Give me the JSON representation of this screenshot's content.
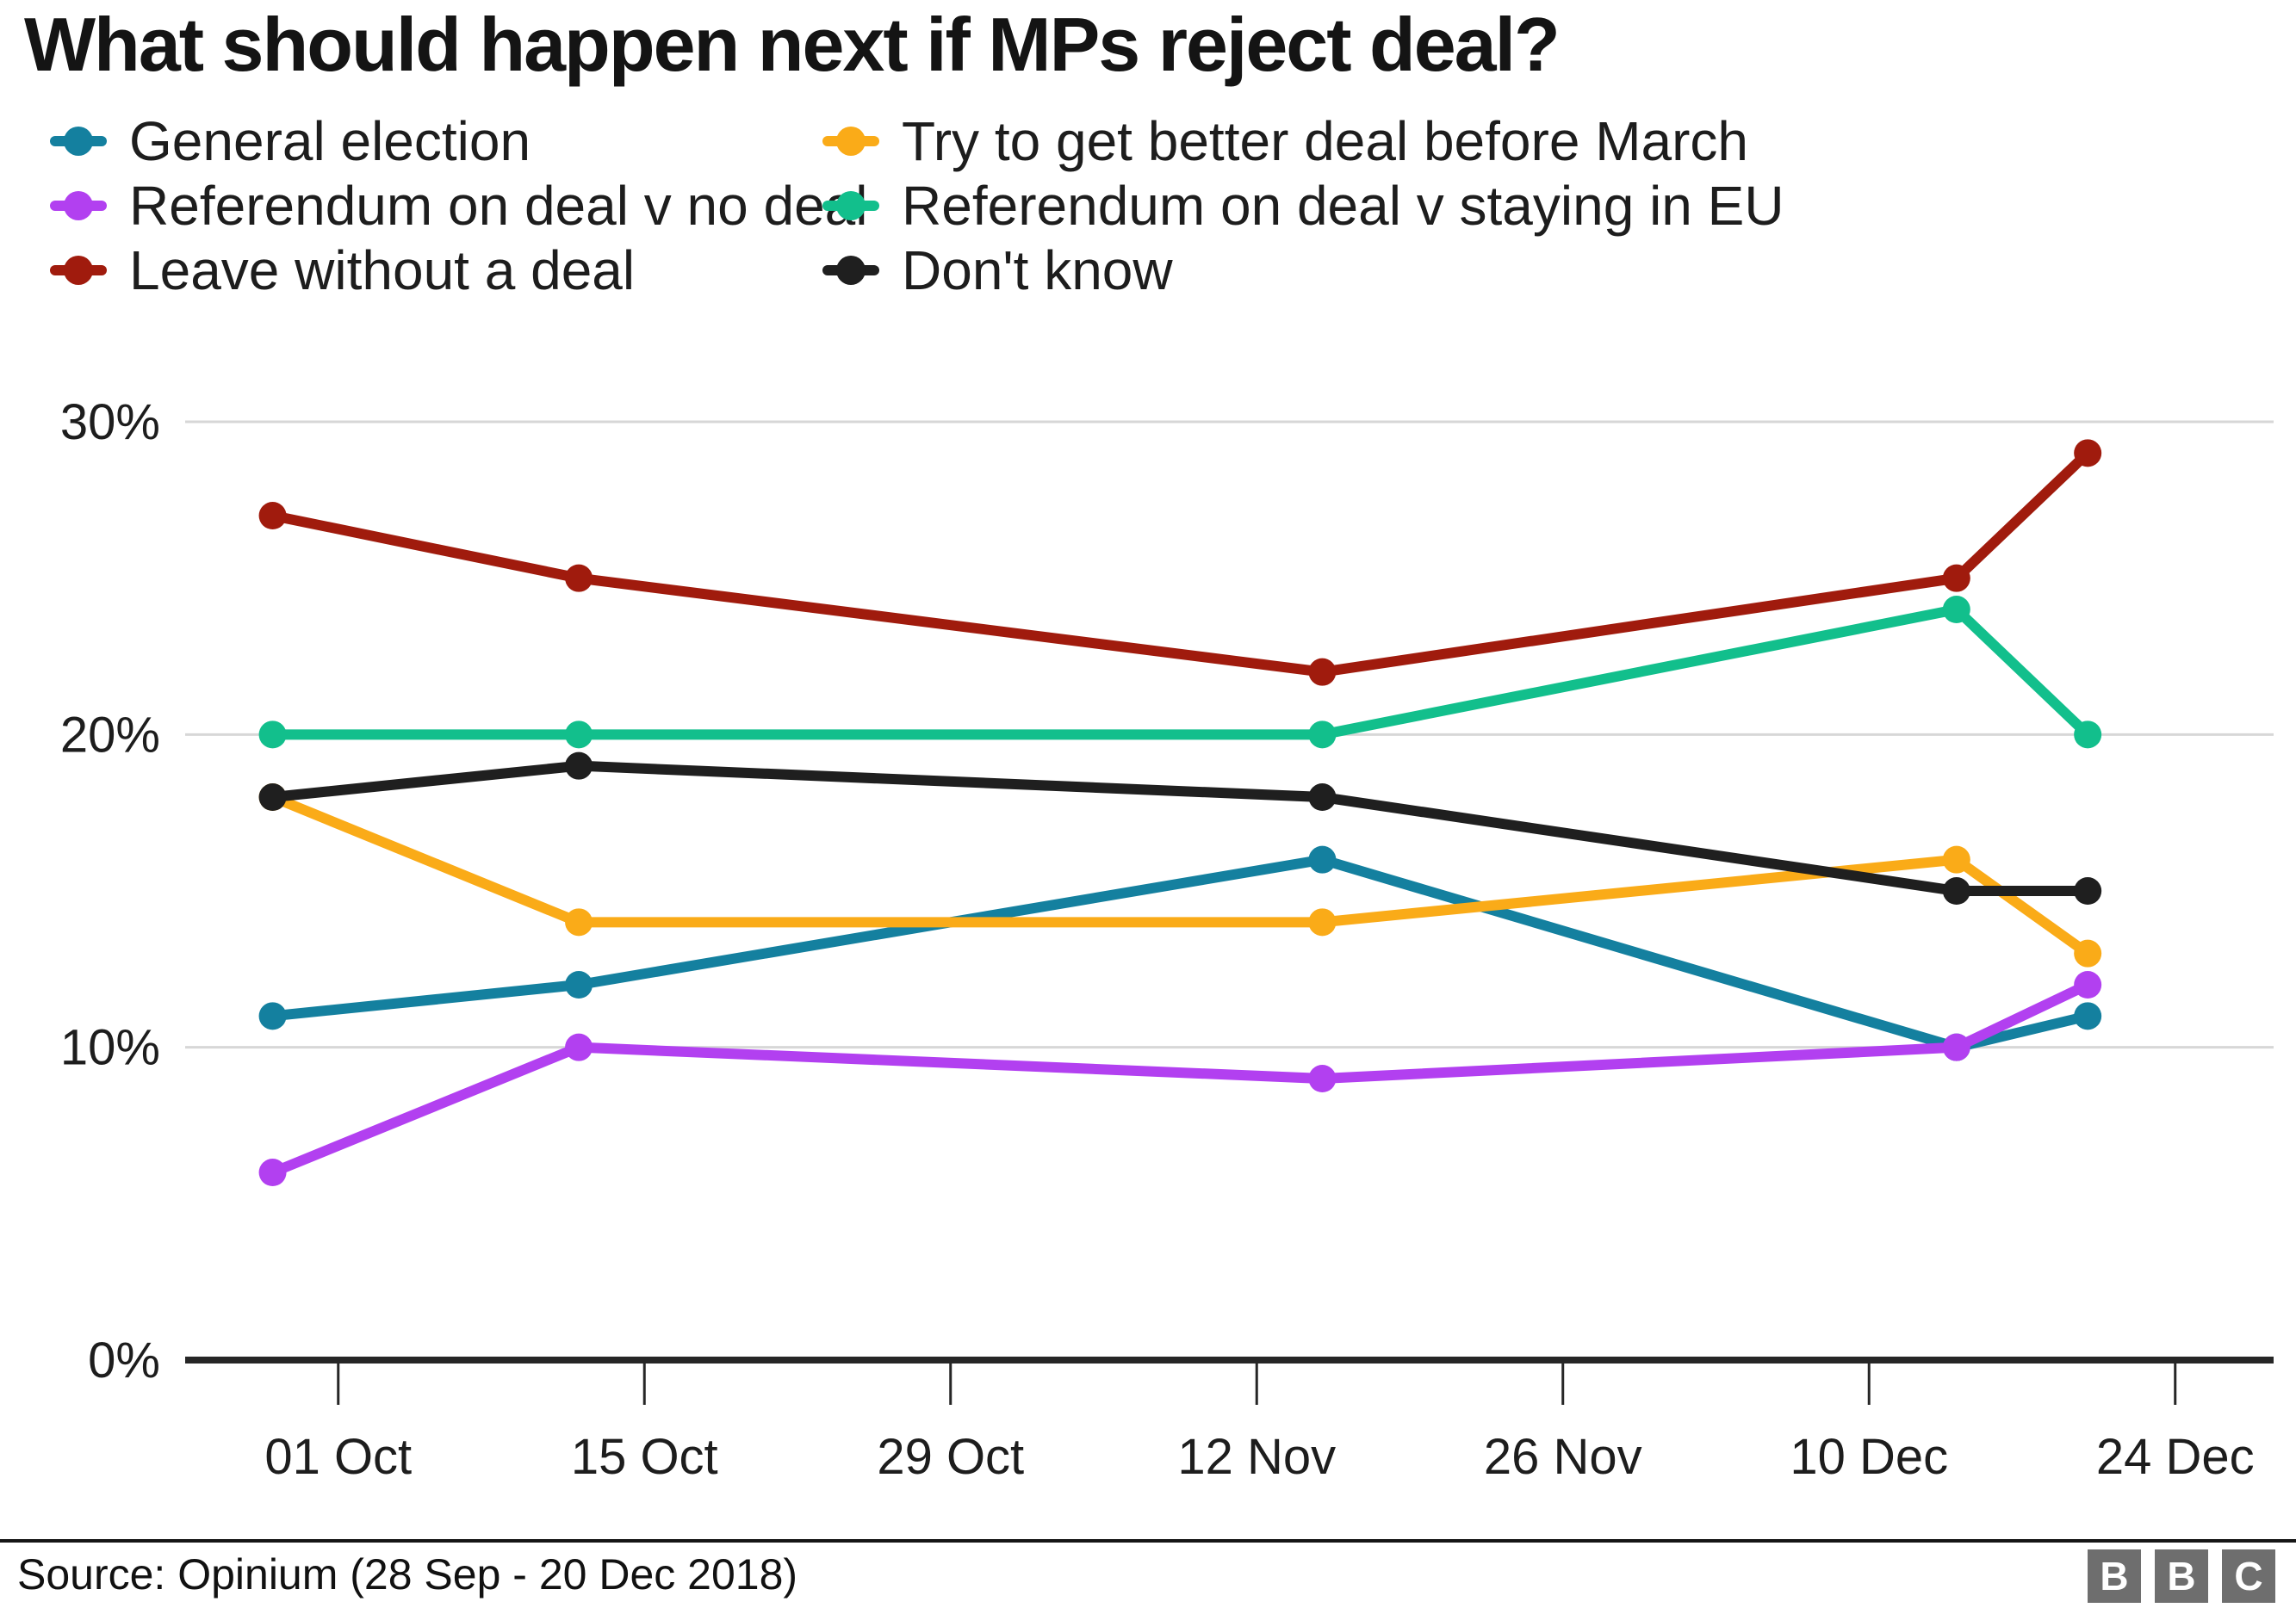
{
  "chart_data": {
    "type": "line",
    "title": "What should happen next if MPs reject deal?",
    "xlabel": "",
    "ylabel": "",
    "ylim": [
      0,
      30
    ],
    "grid": "horizontal",
    "legend_position": "top",
    "y_ticks": [
      {
        "value": 0,
        "label": "0%"
      },
      {
        "value": 10,
        "label": "10%"
      },
      {
        "value": 20,
        "label": "20%"
      },
      {
        "value": 30,
        "label": "30%"
      }
    ],
    "x_ticks": [
      {
        "day": 7,
        "label": "01 Oct"
      },
      {
        "day": 21,
        "label": "15 Oct"
      },
      {
        "day": 35,
        "label": "29 Oct"
      },
      {
        "day": 49,
        "label": "12 Nov"
      },
      {
        "day": 63,
        "label": "26 Nov"
      },
      {
        "day": 77,
        "label": "10 Dec"
      },
      {
        "day": 91,
        "label": "24 Dec"
      }
    ],
    "x_domain_days": [
      0,
      95.5
    ],
    "poll_dates": [
      "28 Sep",
      "12 Oct",
      "15 Nov",
      "14 Dec",
      "20 Dec"
    ],
    "poll_days": [
      4,
      18,
      52,
      81,
      87
    ],
    "series": [
      {
        "name": "General election",
        "slug": "general-election",
        "color": "#14809F",
        "values": [
          11,
          12,
          16,
          10,
          11
        ]
      },
      {
        "name": "Referendum on deal v no deal",
        "slug": "referendum-deal-v-no-deal",
        "color": "#B240F0",
        "values": [
          6,
          10,
          9,
          10,
          12
        ]
      },
      {
        "name": "Leave without a deal",
        "slug": "leave-without-a-deal",
        "color": "#A01B0D",
        "values": [
          27,
          25,
          22,
          25,
          29
        ]
      },
      {
        "name": "Try to get better deal before March",
        "slug": "try-better-deal",
        "color": "#FAAB18",
        "values": [
          18,
          14,
          14,
          16,
          13
        ]
      },
      {
        "name": "Referendum on deal v staying in EU",
        "slug": "referendum-deal-v-staying-eu",
        "color": "#12BF8C",
        "values": [
          20,
          20,
          20,
          24,
          20
        ]
      },
      {
        "name": "Don't know",
        "slug": "dont-know",
        "color": "#1F1F1F",
        "values": [
          18,
          19,
          18,
          15,
          15
        ]
      }
    ]
  },
  "legend": {
    "items": [
      {
        "label": "General election",
        "series": "general-election"
      },
      {
        "label": "Try to get better deal before March",
        "series": "try-better-deal"
      },
      {
        "label": "Referendum on deal v no deal",
        "series": "referendum-deal-v-no-deal"
      },
      {
        "label": "Referendum on deal v staying in EU",
        "series": "referendum-deal-v-staying-eu"
      },
      {
        "label": "Leave without a deal",
        "series": "leave-without-a-deal"
      },
      {
        "label": "Don't know",
        "series": "dont-know"
      }
    ]
  },
  "footer": {
    "source": "Source: Opinium (28 Sep - 20 Dec 2018)",
    "logo": [
      "B",
      "B",
      "C"
    ]
  },
  "style": {
    "gridline_color": "#D7D7D7",
    "axis_color": "#262626",
    "text_color": "#1d1d1d",
    "title_color": "#141414",
    "logo_color": "#6e6e6e"
  }
}
